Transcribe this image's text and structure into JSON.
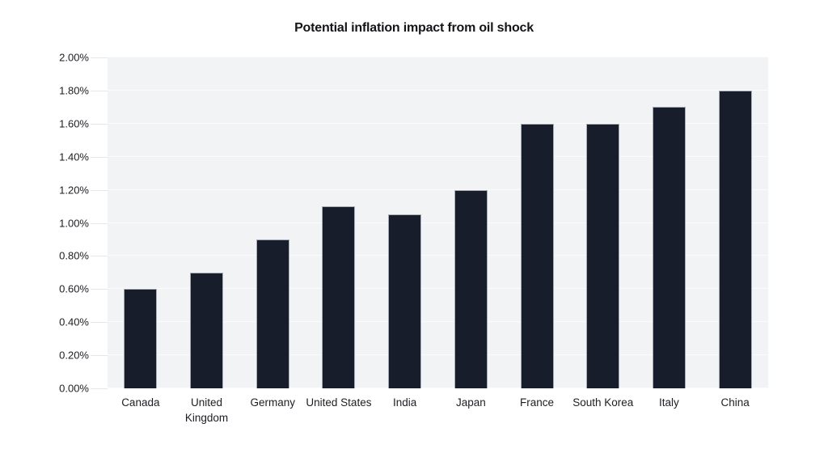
{
  "chart_data": {
    "type": "bar",
    "title": "Potential inflation impact from oil shock",
    "categories": [
      "Canada",
      "United Kingdom",
      "Germany",
      "United States",
      "India",
      "Japan",
      "France",
      "South Korea",
      "Italy",
      "China"
    ],
    "values": [
      0.6,
      0.7,
      0.9,
      1.1,
      1.05,
      1.2,
      1.6,
      1.6,
      1.7,
      1.8
    ],
    "value_unit": "percent",
    "xlabel": "",
    "ylabel": "",
    "ylim": [
      0,
      2
    ],
    "ytick_step": 0.2,
    "ytick_labels": [
      "0.00%",
      "0.20%",
      "0.40%",
      "0.60%",
      "0.80%",
      "1.00%",
      "1.20%",
      "1.40%",
      "1.60%",
      "1.80%",
      "2.00%"
    ],
    "grid": true,
    "legend_position": "none",
    "colors": {
      "bar_fill": "#171d2b",
      "bar_border": "#a6acb7",
      "panel_background": "#f2f3f5",
      "gridline": "#fafbfc",
      "tick": "#e5e7ea",
      "text": "#17191e",
      "page_background": "#ffffff"
    }
  }
}
